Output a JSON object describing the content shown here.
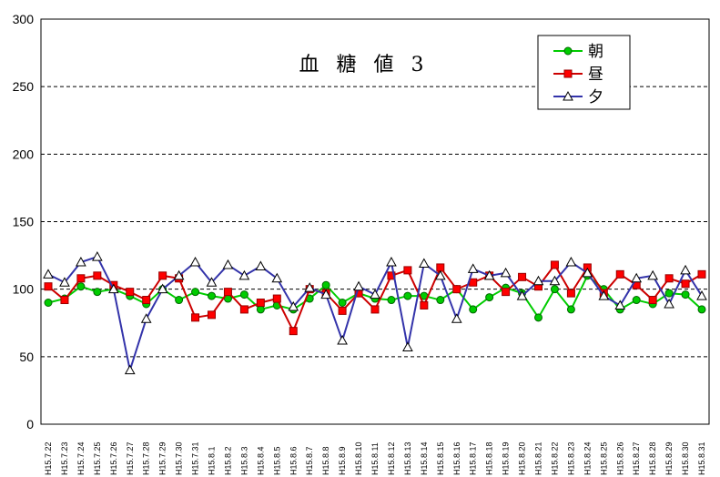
{
  "chart_data": {
    "type": "line",
    "title": "血 糖 値 3",
    "xlabel": "",
    "ylabel": "",
    "ylim": [
      0,
      300
    ],
    "yticks": [
      "0",
      "50",
      "100",
      "150",
      "200",
      "250",
      "300"
    ],
    "grid": "horizontal-dashed",
    "legend": "top-right",
    "categories": [
      "H15.7.22",
      "H15.7.23",
      "H15.7.24",
      "H15.7.25",
      "H15.7.26",
      "H15.7.27",
      "H15.7.28",
      "H15.7.29",
      "H15.7.30",
      "H15.7.31",
      "H15.8.1",
      "H15.8.2",
      "H15.8.3",
      "H15.8.4",
      "H15.8.5",
      "H15.8.6",
      "H15.8.7",
      "H15.8.8",
      "H15.8.9",
      "H15.8.10",
      "H15.8.11",
      "H15.8.12",
      "H15.8.13",
      "H15.8.14",
      "H15.8.15",
      "H15.8.16",
      "H15.8.17",
      "H15.8.18",
      "H15.8.19",
      "H15.8.20",
      "H15.8.21",
      "H15.8.22",
      "H15.8.23",
      "H15.8.24",
      "H15.8.25",
      "H15.8.26",
      "H15.8.27",
      "H15.8.28",
      "H15.8.29",
      "H15.8.30",
      "H15.8.31"
    ],
    "series": [
      {
        "name": "朝",
        "color": "#00cc00",
        "line_color": "#00cc00",
        "marker": "circle",
        "values": [
          90,
          93,
          102,
          98,
          100,
          95,
          89,
          100,
          92,
          98,
          95,
          93,
          96,
          85,
          88,
          85,
          93,
          103,
          90,
          97,
          93,
          92,
          95,
          95,
          92,
          100,
          85,
          94,
          101,
          97,
          79,
          100,
          85,
          110,
          100,
          85,
          92,
          89,
          97,
          96,
          85
        ]
      },
      {
        "name": "昼",
        "color": "#ff0000",
        "line_color": "#cc0000",
        "marker": "square",
        "values": [
          102,
          92,
          108,
          110,
          103,
          98,
          92,
          110,
          108,
          79,
          81,
          98,
          85,
          90,
          93,
          69,
          100,
          97,
          84,
          97,
          85,
          110,
          114,
          88,
          116,
          100,
          105,
          110,
          98,
          109,
          102,
          118,
          97,
          116,
          97,
          111,
          103,
          92,
          108,
          104,
          111
        ]
      },
      {
        "name": "夕",
        "color": "#ffffff",
        "line_color": "#3333aa",
        "marker": "triangle",
        "values": [
          111,
          105,
          120,
          124,
          100,
          40,
          78,
          100,
          110,
          120,
          105,
          118,
          110,
          117,
          108,
          87,
          101,
          96,
          62,
          102,
          96,
          120,
          57,
          119,
          110,
          78,
          115,
          110,
          112,
          95,
          106,
          106,
          120,
          112,
          95,
          88,
          108,
          110,
          89,
          114,
          95
        ]
      }
    ]
  }
}
